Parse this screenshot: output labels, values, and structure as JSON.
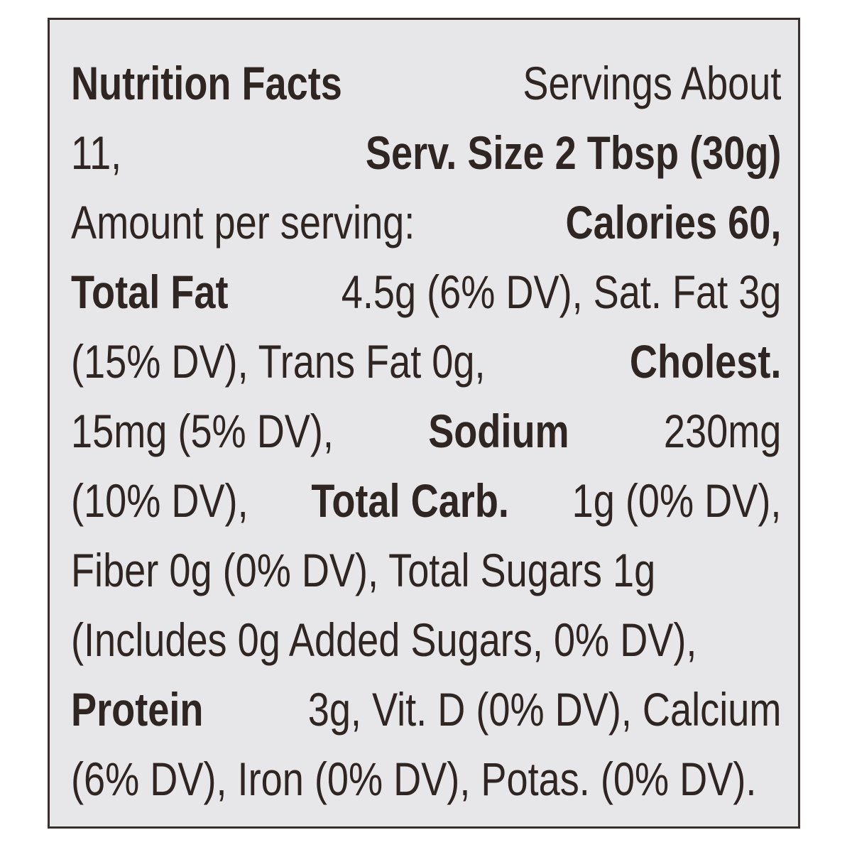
{
  "label": {
    "title": "Nutrition Facts",
    "colors": {
      "text": "#2f2623",
      "border": "#3a2f2c",
      "background": "#e7e7e9"
    },
    "lines": [
      {
        "s0": "Nutrition Facts",
        "s1": "Servings About"
      },
      {
        "s0": "11,",
        "s1": "Serv. Size 2 Tbsp (30g)"
      },
      {
        "s0": "Amount per serving:",
        "s1": "Calories 60,"
      },
      {
        "s0": "Total Fat",
        "s1": "4.5g (6% DV), Sat. Fat 3g"
      },
      {
        "s0": "(15% DV), Trans Fat 0g,",
        "s1": "Cholest."
      },
      {
        "s0": "15mg (5% DV),",
        "s1": "Sodium",
        "s2": "230mg"
      },
      {
        "s0": "(10% DV),",
        "s1": "Total Carb.",
        "s2": "1g (0% DV),"
      },
      {
        "s0": "Fiber 0g (0% DV), Total Sugars 1g"
      },
      {
        "s0": "(Includes 0g Added Sugars, 0% DV),"
      },
      {
        "s0": "Protein",
        "s1": "3g, Vit. D (0% DV), Calcium"
      },
      {
        "s0": "(6% DV), Iron (0% DV), Potas. (0% DV)."
      }
    ]
  }
}
